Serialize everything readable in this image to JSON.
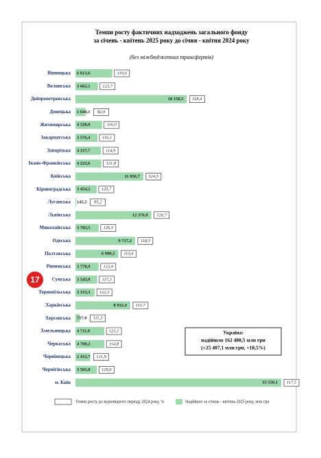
{
  "chart_data": {
    "type": "bar",
    "title": "Темпи росту фактичних надходжень загального фонду за січень - квітень 2025 року до січня - квітня 2024 року",
    "subtitle": "(без міжбюджетних трансфертів)",
    "categories": [
      "Вінницька",
      "Волинська",
      "Дніпропетровська",
      "Донецька",
      "Житомирська",
      "Закарпатська",
      "Запорізька",
      "Івано-Франківська",
      "Київська",
      "Кіровоградська",
      "Луганська",
      "Львівська",
      "Миколаївська",
      "Одеська",
      "Полтавська",
      "Рівненська",
      "Сумська",
      "Тернопільська",
      "Харківська",
      "Херсонська",
      "Хмельницька",
      "Черкаська",
      "Чернівецька",
      "Чернігівська",
      "м. Київ"
    ],
    "series": [
      {
        "name": "Надійшло за січень - квітень 2025 року, млн грн",
        "color": "#9ed8ad",
        "values": [
          6013.6,
          3662.1,
          18158.5,
          1644.1,
          4328.0,
          3576.4,
          4157.7,
          4222.6,
          11056.7,
          3454.2,
          145.5,
          12376.9,
          3783.5,
          9717.2,
          6980.2,
          3778.9,
          3543.9,
          3153.3,
          8932.4,
          717.0,
          4711.0,
          4708.2,
          2412.7,
          3503.8,
          33550.1
        ],
        "value_labels": [
          "6 013,6",
          "3 662,1",
          "18 158,5",
          "1 644,1",
          "4 328,0",
          "3 576,4",
          "4 157,7",
          "4 222,6",
          "11 056,7",
          "3 454,2",
          "145,5",
          "12 376,9",
          "3 783,5",
          "9 717,2",
          "6 980,2",
          "3 778,9",
          "3 543,9",
          "3 153,3",
          "8 932,4",
          "717,0",
          "4 711,0",
          "4 708,2",
          "2 412,7",
          "3 503,8",
          "33 550,1"
        ]
      },
      {
        "name": "Темпи росту до відповідного періоду 2024 року, %",
        "color": "#ffffff",
        "values": [
          119.6,
          123.7,
          118.4,
          82.9,
          116.0,
          116.1,
          114.9,
          121.8,
          124.5,
          120.7,
          95.2,
          120.7,
          126.5,
          118.5,
          110.4,
          123.0,
          117.3,
          122.3,
          111.7,
          111.3,
          121.1,
          114.8,
          121.9,
          129.6,
          117.5
        ],
        "value_labels": [
          "119,6",
          "123,7",
          "118,4",
          "82,9",
          "116,0",
          "116,1",
          "114,9",
          "121,8",
          "124,5",
          "120,7",
          "95,2",
          "120,7",
          "126,5",
          "118,5",
          "110,4",
          "123,0",
          "117,3",
          "122,3",
          "111,7",
          "111,3",
          "121,1",
          "114,8",
          "121,9",
          "129,6",
          "117,5"
        ]
      }
    ],
    "annotation": [
      "Україна:",
      "надійшло 162 480,5 млн грн",
      "(+25 407,1 млн грн, +18,5%)"
    ],
    "badge": "17"
  }
}
